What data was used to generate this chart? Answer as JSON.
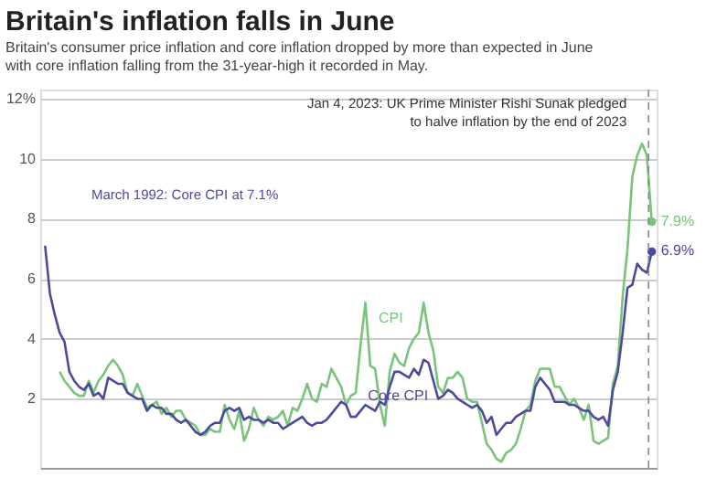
{
  "chart_data": {
    "type": "line",
    "title": "Britain's inflation falls in June",
    "subtitle": "Britain's consumer price inflation and core inflation dropped by more than expected in June with core inflation falling from the 31-year-high it recorded in May.",
    "categories": [
      null,
      null,
      null,
      null,
      null,
      null,
      null,
      null,
      null,
      null,
      null,
      null,
      null,
      null,
      null,
      null,
      null,
      null,
      null,
      null,
      null,
      null,
      null,
      null,
      null,
      null,
      null,
      null,
      null,
      null,
      null,
      null,
      null,
      null,
      null,
      null,
      null,
      null,
      null,
      null,
      null,
      null,
      null,
      null,
      null,
      null,
      null,
      null,
      null,
      null,
      null,
      null,
      null,
      null,
      null,
      null,
      null,
      null,
      null,
      null,
      null,
      null,
      null,
      null,
      null,
      null,
      null,
      null,
      null,
      null,
      null,
      null,
      null,
      null,
      null,
      null,
      null,
      null,
      null,
      null,
      null,
      null,
      null,
      null,
      null,
      null,
      null,
      null,
      null,
      null,
      null,
      null,
      null,
      null,
      null,
      null,
      null,
      null,
      null,
      null,
      null,
      null,
      null,
      null,
      null,
      null,
      null,
      null,
      null,
      null,
      null,
      null,
      null,
      null,
      null,
      null,
      null,
      null,
      null,
      null,
      null,
      null,
      null,
      null,
      null,
      null
    ],
    "ylim": [
      -0.3,
      12.3
    ],
    "yticks": [
      {
        "value": 12,
        "label": "12%"
      },
      10,
      8,
      6,
      4,
      2
    ],
    "tick_labels": "y",
    "grid": "y",
    "series": [
      {
        "name": "CPI",
        "color": "#78c47a",
        "values": [
          null,
          null,
          null,
          2.9,
          2.6,
          2.4,
          2.2,
          2.1,
          2.1,
          2.6,
          2.2,
          2.6,
          2.8,
          3.1,
          3.3,
          3.1,
          2.8,
          2.2,
          2.1,
          2.5,
          2.1,
          1.7,
          1.8,
          1.9,
          1.5,
          1.7,
          1.4,
          1.6,
          1.6,
          1.3,
          1.2,
          1.1,
          0.8,
          0.8,
          1.0,
          0.9,
          0.9,
          1.8,
          1.3,
          1.0,
          1.6,
          0.6,
          1.0,
          1.7,
          1.3,
          1.1,
          1.4,
          1.3,
          1.4,
          1.6,
          1.1,
          1.7,
          1.6,
          2.0,
          2.5,
          2.0,
          1.9,
          2.5,
          2.4,
          3.0,
          2.7,
          2.4,
          1.8,
          2.1,
          2.2,
          3.8,
          5.2,
          3.1,
          3.0,
          1.8,
          1.1,
          2.9,
          3.5,
          3.2,
          3.1,
          3.7,
          4.0,
          4.2,
          5.2,
          4.2,
          3.6,
          2.4,
          2.2,
          2.7,
          2.7,
          2.9,
          2.7,
          2.0,
          1.9,
          1.9,
          1.2,
          0.5,
          0.3,
          0.0,
          -0.1,
          0.2,
          0.3,
          0.5,
          1.0,
          1.6,
          1.8,
          2.6,
          3.0,
          3.0,
          3.0,
          2.4,
          2.4,
          2.1,
          1.8,
          2.0,
          1.7,
          1.3,
          1.8,
          0.6,
          0.5,
          0.6,
          0.7,
          2.5,
          3.1,
          5.4,
          7.0,
          9.4,
          10.1,
          10.5,
          10.1,
          7.9
        ],
        "value_labels": [
          null,
          null,
          null,
          null,
          null,
          null,
          null,
          null,
          null,
          null,
          null,
          null,
          null,
          null,
          null,
          null,
          null,
          null,
          null,
          null,
          null,
          null,
          null,
          null,
          null,
          null,
          null,
          null,
          null,
          null,
          null,
          null,
          null,
          null,
          null,
          null,
          null,
          null,
          null,
          null,
          null,
          null,
          null,
          null,
          null,
          null,
          null,
          null,
          null,
          null,
          null,
          null,
          null,
          null,
          null,
          null,
          null,
          null,
          null,
          null,
          null,
          null,
          null,
          null,
          null,
          null,
          null,
          null,
          null,
          null,
          null,
          null,
          null,
          null,
          null,
          null,
          null,
          null,
          null,
          null,
          null,
          null,
          null,
          null,
          null,
          null,
          null,
          null,
          null,
          null,
          null,
          null,
          null,
          null,
          null,
          null,
          null,
          null,
          null,
          null,
          null,
          null,
          null,
          null,
          null,
          null,
          null,
          null,
          null,
          null,
          null,
          null,
          null,
          null,
          null,
          null,
          null,
          null,
          null,
          null,
          null,
          null,
          null,
          null,
          null,
          "7.9%"
        ]
      },
      {
        "name": "Core CPI",
        "color": "#4b4a9c",
        "values": [
          7.1,
          5.5,
          4.8,
          4.2,
          3.9,
          2.9,
          2.6,
          2.4,
          2.3,
          2.5,
          2.1,
          2.2,
          2.0,
          2.7,
          2.6,
          2.5,
          2.5,
          2.2,
          2.1,
          2.0,
          2.0,
          1.6,
          1.8,
          1.7,
          1.7,
          1.5,
          1.5,
          1.3,
          1.2,
          1.3,
          1.1,
          0.9,
          0.8,
          0.9,
          1.1,
          1.2,
          1.2,
          1.6,
          1.7,
          1.6,
          1.7,
          1.3,
          1.4,
          1.3,
          1.3,
          1.2,
          1.3,
          1.2,
          1.2,
          1.0,
          1.1,
          1.2,
          1.3,
          1.4,
          1.2,
          1.1,
          1.2,
          1.2,
          1.3,
          1.5,
          1.7,
          1.9,
          1.8,
          1.4,
          1.4,
          1.6,
          1.8,
          1.7,
          1.6,
          1.9,
          1.8,
          2.4,
          2.9,
          2.9,
          2.8,
          2.7,
          3.0,
          2.8,
          3.3,
          3.2,
          2.6,
          2.0,
          2.1,
          2.3,
          2.2,
          2.0,
          1.9,
          1.8,
          1.7,
          1.8,
          1.6,
          1.2,
          1.4,
          0.8,
          1.0,
          1.2,
          1.2,
          1.4,
          1.5,
          1.6,
          1.6,
          2.4,
          2.7,
          2.5,
          2.3,
          1.9,
          1.9,
          1.9,
          1.8,
          1.8,
          1.7,
          1.6,
          1.6,
          1.4,
          1.3,
          1.4,
          1.1,
          2.3,
          2.9,
          4.2,
          5.7,
          5.8,
          6.5,
          6.3,
          6.2,
          6.9
        ],
        "value_labels": [
          null,
          null,
          null,
          null,
          null,
          null,
          null,
          null,
          null,
          null,
          null,
          null,
          null,
          null,
          null,
          null,
          null,
          null,
          null,
          null,
          null,
          null,
          null,
          null,
          null,
          null,
          null,
          null,
          null,
          null,
          null,
          null,
          null,
          null,
          null,
          null,
          null,
          null,
          null,
          null,
          null,
          null,
          null,
          null,
          null,
          null,
          null,
          null,
          null,
          null,
          null,
          null,
          null,
          null,
          null,
          null,
          null,
          null,
          null,
          null,
          null,
          null,
          null,
          null,
          null,
          null,
          null,
          null,
          null,
          null,
          null,
          null,
          null,
          null,
          null,
          null,
          null,
          null,
          null,
          null,
          null,
          null,
          null,
          null,
          null,
          null,
          null,
          null,
          null,
          null,
          null,
          null,
          null,
          null,
          null,
          null,
          null,
          null,
          null,
          null,
          null,
          null,
          null,
          null,
          null,
          null,
          null,
          null,
          null,
          null,
          null,
          null,
          null,
          null,
          null,
          null,
          null,
          null,
          null,
          null,
          null,
          null,
          null,
          null,
          null,
          "6.9%"
        ]
      }
    ],
    "annotations": [
      "March 1992: Core CPI at 7.1%",
      "Jan 4, 2023: UK Prime Minister Rishi Sunak pledged to halve inflation by the end of 2023"
    ]
  }
}
